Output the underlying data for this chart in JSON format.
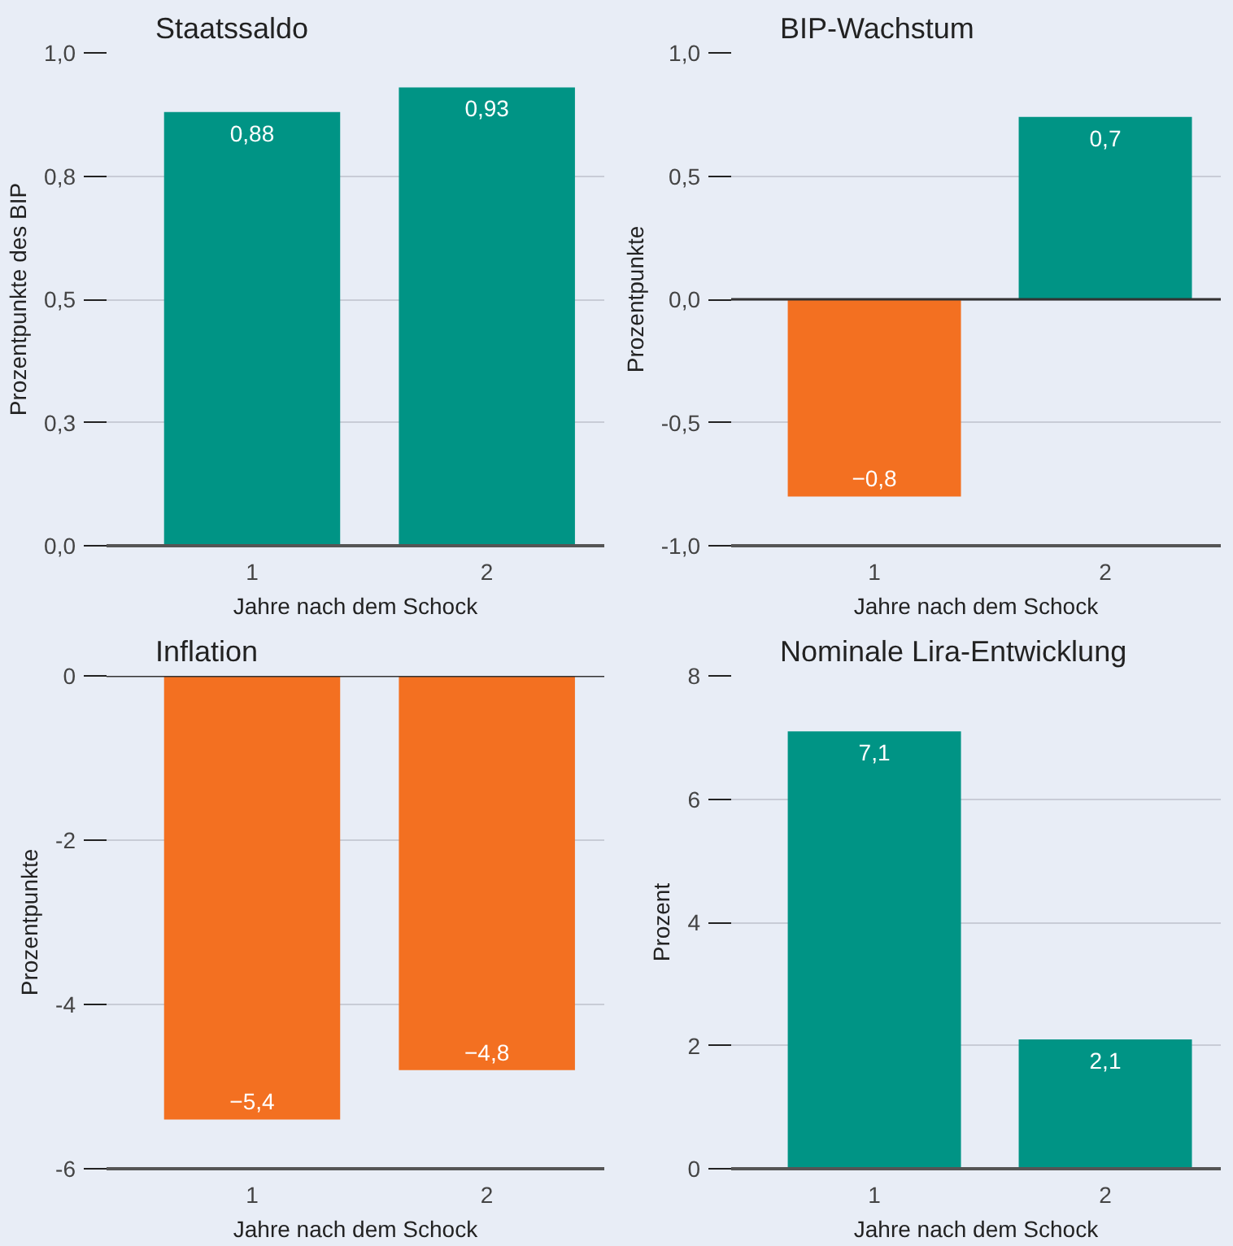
{
  "chart_data": [
    {
      "type": "bar",
      "title": "Staatssaldo",
      "xlabel": "Jahre nach dem Schock",
      "ylabel": "Prozentpunkte des BIP",
      "categories": [
        "1",
        "2"
      ],
      "values": [
        0.88,
        0.93
      ],
      "colors": [
        "#009485",
        "#009485"
      ],
      "value_labels": [
        "0,88",
        "0,93"
      ],
      "ylim": [
        0,
        1
      ],
      "yticks": [
        {
          "value": 0,
          "label": "0,0"
        },
        {
          "value": 0.25,
          "label": "0,3"
        },
        {
          "value": 0.5,
          "label": "0,5"
        },
        {
          "value": 0.75,
          "label": "0,8"
        },
        {
          "value": 1,
          "label": "1,0"
        }
      ],
      "grid": "y"
    },
    {
      "type": "bar",
      "title": "BIP-Wachstum",
      "xlabel": "Jahre nach dem Schock",
      "ylabel": "Prozentpunkte",
      "categories": [
        "1",
        "2"
      ],
      "values": [
        -0.8,
        0.74
      ],
      "colors": [
        "#f37021",
        "#009485"
      ],
      "value_labels": [
        "−0,8",
        "0,7"
      ],
      "ylim": [
        -1,
        1
      ],
      "yticks": [
        {
          "value": -1,
          "label": "-1,0"
        },
        {
          "value": -0.5,
          "label": "-0,5"
        },
        {
          "value": 0,
          "label": "0,0"
        },
        {
          "value": 0.5,
          "label": "0,5"
        },
        {
          "value": 1,
          "label": "1,0"
        }
      ],
      "grid": "y",
      "ref_lines": [
        {
          "axis": "y",
          "value": 0
        }
      ]
    },
    {
      "type": "bar",
      "title": "Inflation",
      "xlabel": "Jahre nach dem Schock",
      "ylabel": "Prozentpunkte",
      "categories": [
        "1",
        "2"
      ],
      "values": [
        -5.4,
        -4.8
      ],
      "colors": [
        "#f37021",
        "#f37021"
      ],
      "value_labels": [
        "−5,4",
        "−4,8"
      ],
      "ylim": [
        -6,
        0
      ],
      "yticks": [
        {
          "value": -6,
          "label": "-6"
        },
        {
          "value": -4,
          "label": "-4"
        },
        {
          "value": -2,
          "label": "-2"
        },
        0
      ],
      "grid": "y",
      "ref_lines": [
        {
          "axis": "y",
          "value": 0
        }
      ]
    },
    {
      "type": "bar",
      "title": "Nominale Lira-Entwicklung",
      "xlabel": "Jahre nach dem Schock",
      "ylabel": "Prozent",
      "categories": [
        "1",
        "2"
      ],
      "values": [
        7.1,
        2.1
      ],
      "colors": [
        "#009485",
        "#009485"
      ],
      "value_labels": [
        "7,1",
        "2,1"
      ],
      "ylim": [
        0,
        8
      ],
      "yticks": [
        0,
        2,
        4,
        6,
        8
      ],
      "grid": "y"
    }
  ]
}
